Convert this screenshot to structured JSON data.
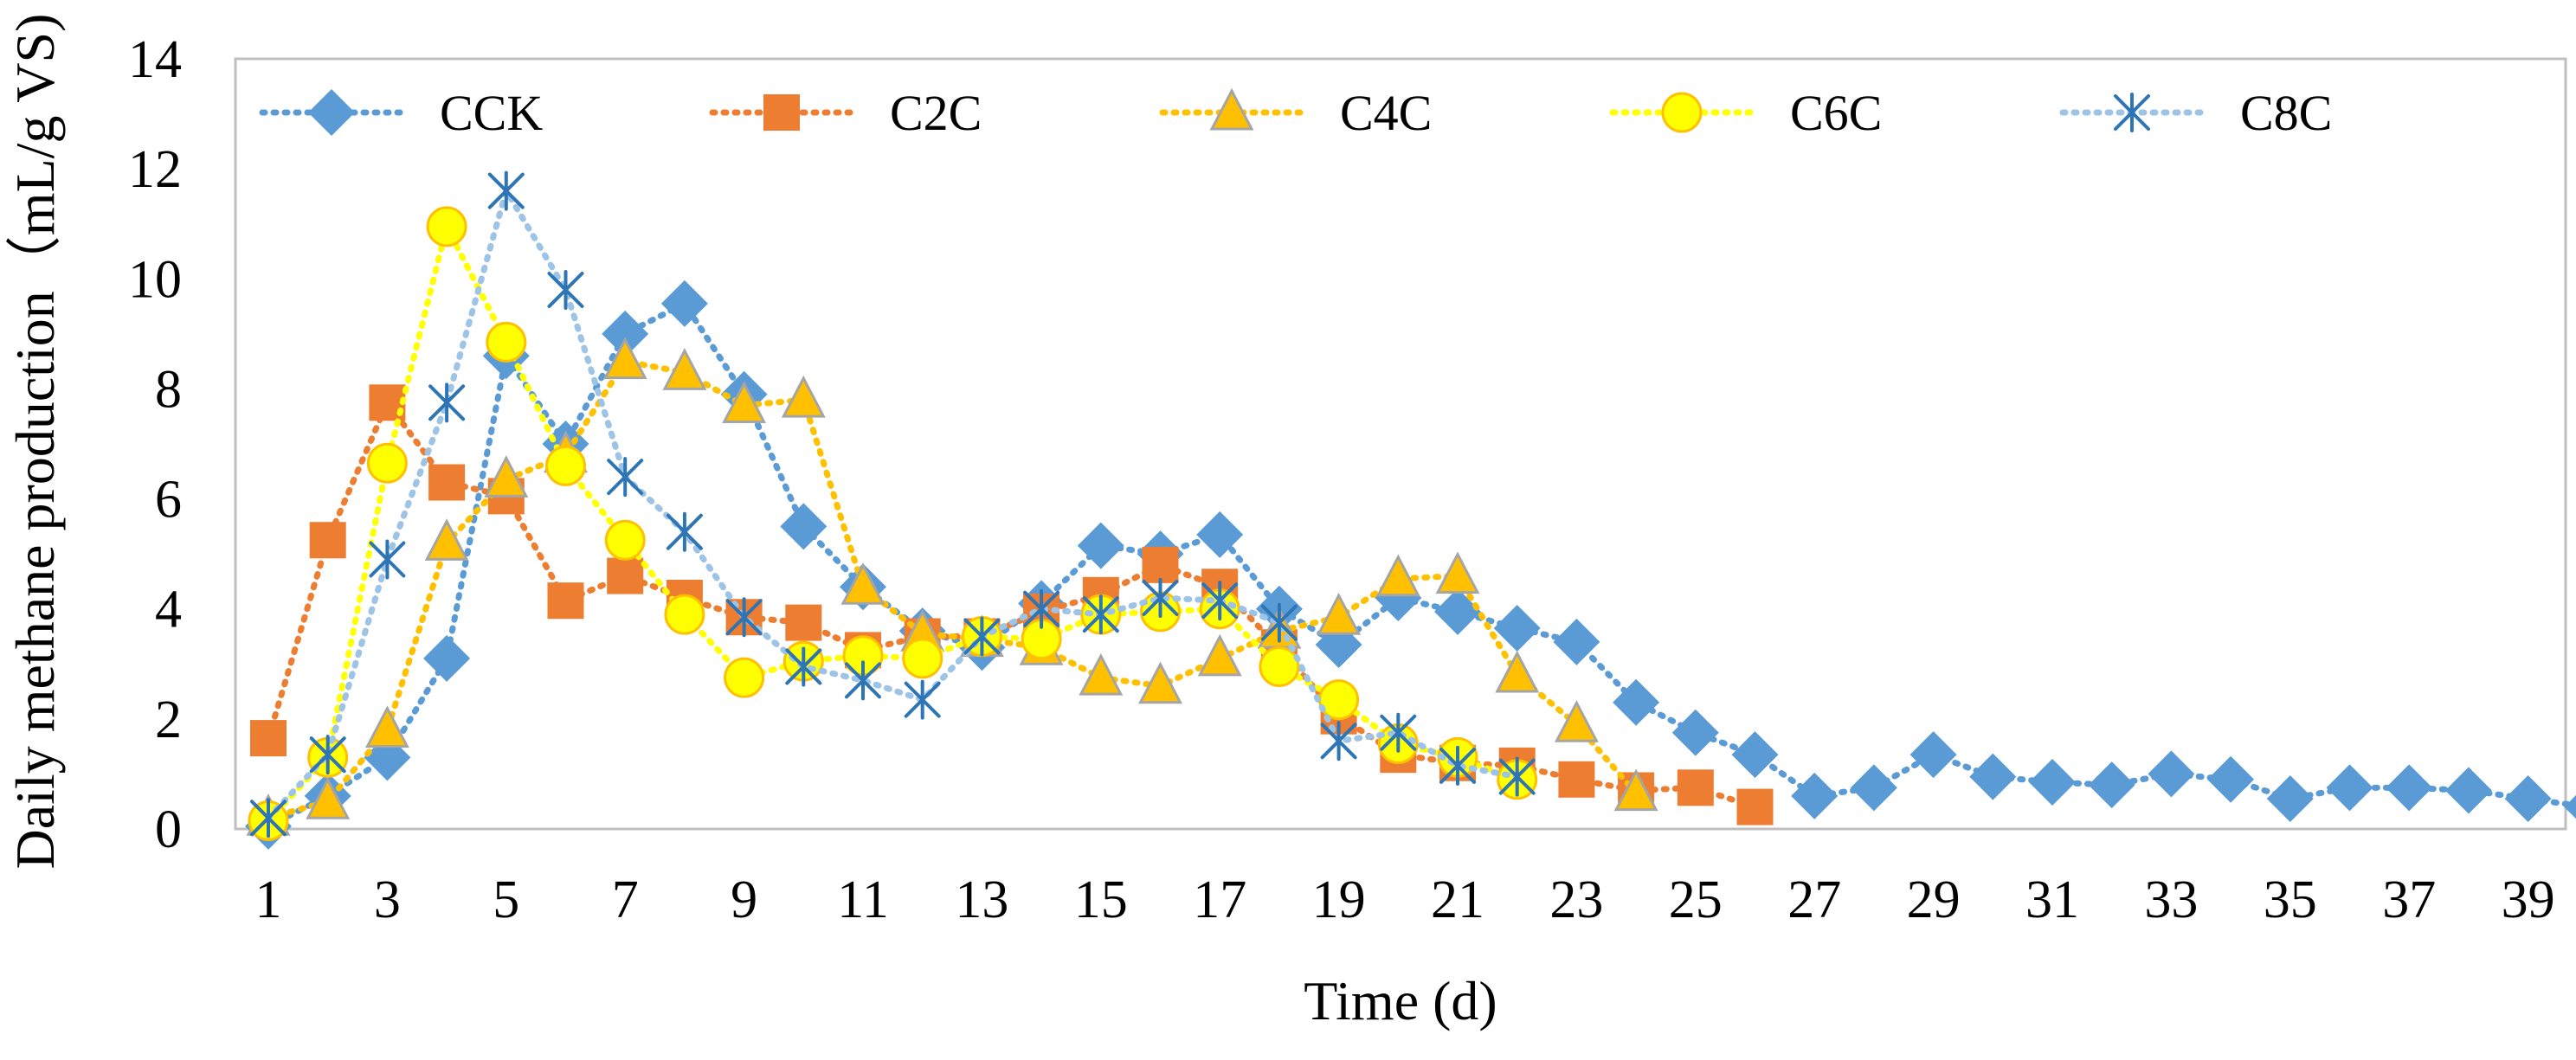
{
  "chart_data": {
    "type": "line",
    "title": "",
    "xlabel": "Time (d)",
    "ylabel": "Daily methane production（mL/g VS)",
    "xlim": [
      1,
      40
    ],
    "ylim": [
      0,
      14
    ],
    "x_ticks": [
      1,
      3,
      5,
      7,
      9,
      11,
      13,
      15,
      17,
      19,
      21,
      23,
      25,
      27,
      29,
      31,
      33,
      35,
      37,
      39
    ],
    "y_ticks": [
      0,
      2,
      4,
      6,
      8,
      10,
      12,
      14
    ],
    "grid": false,
    "legend_position": "top",
    "series": [
      {
        "name": "CCK",
        "color": "#5B9BD5",
        "marker": "diamond",
        "x": [
          1,
          2,
          3,
          4,
          5,
          6,
          7,
          8,
          9,
          10,
          11,
          12,
          13,
          14,
          15,
          16,
          17,
          18,
          19,
          20,
          21,
          22,
          23,
          24,
          25,
          26,
          27,
          28,
          29,
          30,
          31,
          32,
          33,
          34,
          35,
          36,
          37,
          38,
          39,
          40
        ],
        "values": [
          0.05,
          0.6,
          1.3,
          3.1,
          8.6,
          7.0,
          9.0,
          9.55,
          7.9,
          5.5,
          4.4,
          3.6,
          3.3,
          4.1,
          5.15,
          5.0,
          5.35,
          4.0,
          3.35,
          4.2,
          3.95,
          3.65,
          3.4,
          2.3,
          1.75,
          1.35,
          0.6,
          0.75,
          1.35,
          0.95,
          0.85,
          0.8,
          1.0,
          0.9,
          0.55,
          0.75,
          0.75,
          0.7,
          0.55,
          0.4
        ]
      },
      {
        "name": "C2C",
        "color": "#ED7D31",
        "marker": "square",
        "x": [
          1,
          2,
          3,
          4,
          5,
          6,
          7,
          8,
          9,
          10,
          11,
          12,
          13,
          14,
          15,
          16,
          17,
          18,
          19,
          20,
          21,
          22,
          23,
          24,
          25,
          26
        ],
        "values": [
          1.65,
          5.25,
          7.75,
          6.3,
          6.05,
          4.15,
          4.6,
          4.2,
          3.85,
          3.75,
          3.25,
          3.5,
          3.5,
          3.95,
          4.25,
          4.8,
          4.4,
          3.3,
          2.05,
          1.35,
          1.2,
          1.15,
          0.9,
          0.7,
          0.75,
          0.4
        ]
      },
      {
        "name": "C4C",
        "color": "#FFC000",
        "marker": "triangle",
        "x": [
          1,
          2,
          3,
          4,
          5,
          6,
          7,
          8,
          9,
          10,
          11,
          12,
          13,
          14,
          15,
          16,
          17,
          18,
          19,
          20,
          21,
          22,
          23,
          24
        ],
        "values": [
          0.2,
          0.5,
          1.8,
          5.2,
          6.35,
          6.8,
          8.5,
          8.3,
          7.7,
          7.8,
          4.4,
          3.55,
          3.45,
          3.3,
          2.75,
          2.6,
          3.1,
          3.6,
          3.85,
          4.55,
          4.6,
          2.8,
          1.9,
          0.65
        ]
      },
      {
        "name": "C6C",
        "color": "#FFFF00",
        "marker": "circle",
        "x": [
          1,
          2,
          3,
          4,
          5,
          6,
          7,
          8,
          9,
          10,
          11,
          12,
          13,
          14,
          15,
          16,
          17,
          18,
          19,
          20,
          21,
          22
        ],
        "values": [
          0.15,
          1.3,
          6.65,
          10.95,
          8.85,
          6.6,
          5.25,
          3.9,
          2.75,
          3.05,
          3.15,
          3.1,
          3.5,
          3.45,
          3.9,
          3.95,
          4.0,
          2.95,
          2.35,
          1.55,
          1.3,
          0.9
        ]
      },
      {
        "name": "C8C",
        "color": "#2E75B6",
        "line_color": "#9DC3E6",
        "marker": "asterisk",
        "x": [
          1,
          2,
          3,
          4,
          5,
          6,
          7,
          8,
          9,
          10,
          11,
          12,
          13,
          14,
          15,
          16,
          17,
          18,
          19,
          20,
          21,
          22
        ],
        "values": [
          0.2,
          1.35,
          4.9,
          7.75,
          11.6,
          9.8,
          6.4,
          5.4,
          3.85,
          2.95,
          2.7,
          2.35,
          3.5,
          4.0,
          3.9,
          4.2,
          4.15,
          3.75,
          1.6,
          1.75,
          1.15,
          0.95
        ]
      }
    ]
  }
}
